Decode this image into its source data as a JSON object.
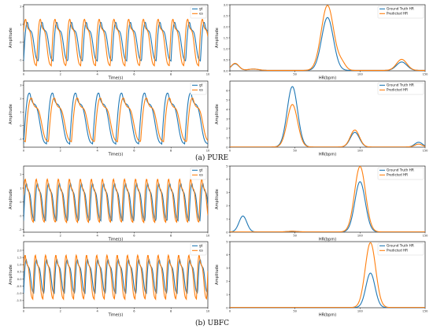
{
  "figure": {
    "captions": [
      "(a) PURE",
      "(b) UBFC"
    ],
    "colors": {
      "gt": "#1f77b4",
      "es": "#ff7f0e",
      "axes": "#000000"
    }
  },
  "chart_data": [
    {
      "type": "line",
      "panel": "pure-time-1",
      "xlabel": "Time(s)",
      "ylabel": "Amplitude",
      "xlim": [
        0,
        10
      ],
      "ylim": [
        -1.6,
        2.1
      ],
      "xticks": [
        "0",
        "2",
        "4",
        "6",
        "8",
        "10"
      ],
      "yticks": [
        "-1",
        "0",
        "1",
        "2"
      ],
      "legend": {
        "position": "top-right",
        "entries": [
          "gt",
          "es"
        ]
      },
      "series": [
        {
          "name": "gt",
          "color": "#1f77b4",
          "freq_hz": 1.25,
          "amplitude": 1.2,
          "phase": 0.0,
          "offset": 0.05
        },
        {
          "name": "es",
          "color": "#ff7f0e",
          "freq_hz": 1.25,
          "amplitude": 1.45,
          "phase": 0.12,
          "offset": 0.0
        }
      ]
    },
    {
      "type": "line",
      "panel": "pure-spectrum-1",
      "xlabel": "HR(bpm)",
      "ylabel": "Amplitude",
      "xlim": [
        0,
        150
      ],
      "ylim": [
        0,
        3.0
      ],
      "xticks": [
        "0",
        "50",
        "100",
        "150"
      ],
      "yticks": [
        "0.0",
        "0.5",
        "1.0",
        "1.5",
        "2.0",
        "2.5",
        "3.0"
      ],
      "legend": {
        "position": "top-right",
        "entries": [
          "Ground Truth HR",
          "Predicted HR"
        ]
      },
      "series": [
        {
          "name": "Ground Truth HR",
          "color": "#1f77b4",
          "peaks": [
            [
              4,
              0.3,
              3
            ],
            [
              18,
              0.06,
              4
            ],
            [
              75,
              2.4,
              4.5
            ],
            [
              132,
              0.38,
              4
            ]
          ]
        },
        {
          "name": "Predicted HR",
          "color": "#ff7f0e",
          "peaks": [
            [
              4,
              0.32,
              3
            ],
            [
              18,
              0.06,
              4
            ],
            [
              75,
              2.95,
              4.8
            ],
            [
              86,
              0.3,
              3
            ],
            [
              132,
              0.5,
              4
            ]
          ]
        }
      ]
    },
    {
      "type": "line",
      "panel": "pure-time-2",
      "xlabel": "Time(s)",
      "ylabel": "Amplitude",
      "xlim": [
        0,
        10
      ],
      "ylim": [
        -1.6,
        3.3
      ],
      "xticks": [
        "0",
        "2",
        "4",
        "6",
        "8",
        "10"
      ],
      "yticks": [
        "-1",
        "0",
        "1",
        "2",
        "3"
      ],
      "legend": {
        "position": "top-right",
        "entries": [
          "gt",
          "es"
        ]
      },
      "series": [
        {
          "name": "gt",
          "color": "#1f77b4",
          "freq_hz": 0.8,
          "amplitude": 2.1,
          "phase": 0.0,
          "offset": 0.55
        },
        {
          "name": "es",
          "color": "#ff7f0e",
          "freq_hz": 0.8,
          "amplitude": 1.8,
          "phase": -0.08,
          "offset": 0.45
        }
      ]
    },
    {
      "type": "line",
      "panel": "pure-spectrum-2",
      "xlabel": "HR(bpm)",
      "ylabel": "Amplitude",
      "xlim": [
        0,
        150
      ],
      "ylim": [
        0,
        7
      ],
      "xticks": [
        "0",
        "50",
        "100",
        "150"
      ],
      "yticks": [
        "0",
        "1",
        "2",
        "3",
        "4",
        "5",
        "6"
      ],
      "legend": {
        "position": "top-right",
        "entries": [
          "Ground Truth HR",
          "Predicted HR"
        ]
      },
      "series": [
        {
          "name": "Ground Truth HR",
          "color": "#1f77b4",
          "peaks": [
            [
              48,
              6.4,
              4
            ],
            [
              96,
              1.55,
              3.5
            ],
            [
              145,
              0.5,
              3
            ]
          ]
        },
        {
          "name": "Predicted HR",
          "color": "#ff7f0e",
          "peaks": [
            [
              48,
              4.5,
              4
            ],
            [
              96,
              1.8,
              3.5
            ],
            [
              145,
              0.3,
              3
            ]
          ]
        }
      ]
    },
    {
      "type": "line",
      "panel": "ubfc-time-1",
      "xlabel": "Time(s)",
      "ylabel": "Amplitude",
      "xlim": [
        0,
        10
      ],
      "ylim": [
        -2.2,
        2.6
      ],
      "xticks": [
        "0",
        "2",
        "4",
        "6",
        "8",
        "10"
      ],
      "yticks": [
        "-2",
        "-1",
        "0",
        "1",
        "2"
      ],
      "legend": {
        "position": "top-right",
        "entries": [
          "gt",
          "es"
        ]
      },
      "series": [
        {
          "name": "gt",
          "color": "#1f77b4",
          "freq_hz": 1.67,
          "amplitude": 1.5,
          "phase": 0.0,
          "offset": 0.0
        },
        {
          "name": "es",
          "color": "#ff7f0e",
          "freq_hz": 1.67,
          "amplitude": 1.75,
          "phase": 0.1,
          "offset": 0.1
        }
      ]
    },
    {
      "type": "line",
      "panel": "ubfc-spectrum-1",
      "xlabel": "HR(bpm)",
      "ylabel": "Amplitude",
      "xlim": [
        0,
        150
      ],
      "ylim": [
        0,
        5
      ],
      "xticks": [
        "0",
        "50",
        "100",
        "150"
      ],
      "yticks": [
        "0",
        "1",
        "2",
        "3",
        "4",
        "5"
      ],
      "legend": {
        "position": "top-right",
        "entries": [
          "Ground Truth HR",
          "Predicted HR"
        ]
      },
      "series": [
        {
          "name": "Ground Truth HR",
          "color": "#1f77b4",
          "peaks": [
            [
              10,
              1.2,
              3
            ],
            [
              48,
              0.05,
              4
            ],
            [
              100,
              3.8,
              4
            ]
          ]
        },
        {
          "name": "Predicted HR",
          "color": "#ff7f0e",
          "peaks": [
            [
              48,
              0.05,
              4
            ],
            [
              100,
              4.95,
              4.2
            ]
          ]
        }
      ]
    },
    {
      "type": "line",
      "panel": "ubfc-time-2",
      "xlabel": "Time(s)",
      "ylabel": "Amplitude",
      "xlim": [
        0,
        10
      ],
      "ylim": [
        -2.0,
        2.6
      ],
      "xticks": [
        "0",
        "2",
        "4",
        "6",
        "8",
        "10"
      ],
      "yticks": [
        "-1.5",
        "-1.0",
        "-0.5",
        "0.0",
        "0.5",
        "1.0",
        "1.5",
        "2.0"
      ],
      "legend": {
        "position": "top-right",
        "entries": [
          "gt",
          "es"
        ]
      },
      "series": [
        {
          "name": "gt",
          "color": "#1f77b4",
          "freq_hz": 1.8,
          "amplitude": 1.3,
          "phase": 0.0,
          "offset": 0.2
        },
        {
          "name": "es",
          "color": "#ff7f0e",
          "freq_hz": 1.8,
          "amplitude": 1.7,
          "phase": 0.1,
          "offset": 0.15
        }
      ]
    },
    {
      "type": "line",
      "panel": "ubfc-spectrum-2",
      "xlabel": "HR(bpm)",
      "ylabel": "Amplitude",
      "xlim": [
        0,
        150
      ],
      "ylim": [
        0,
        5
      ],
      "xticks": [
        "0",
        "50",
        "100",
        "150"
      ],
      "yticks": [
        "0",
        "1",
        "2",
        "3",
        "4",
        "5"
      ],
      "legend": {
        "position": "top-right",
        "entries": [
          "Ground Truth HR",
          "Predicted HR"
        ]
      },
      "series": [
        {
          "name": "Ground Truth HR",
          "color": "#1f77b4",
          "peaks": [
            [
              108,
              2.6,
              3.5
            ]
          ]
        },
        {
          "name": "Predicted HR",
          "color": "#ff7f0e",
          "peaks": [
            [
              108,
              4.9,
              4
            ]
          ]
        }
      ]
    }
  ]
}
